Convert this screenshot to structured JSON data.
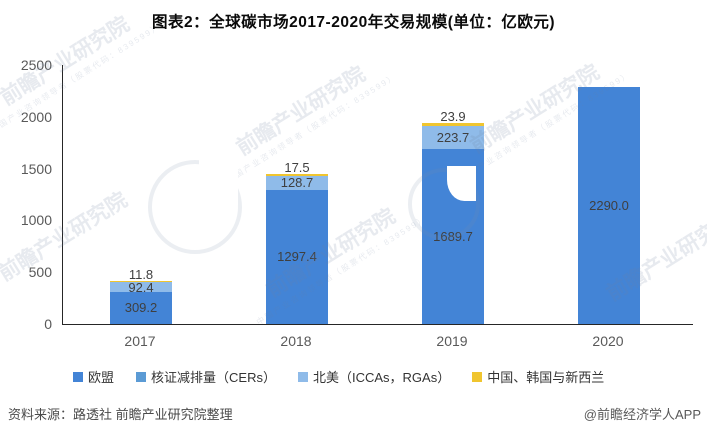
{
  "title": "图表2：全球碳市场2017-2020年交易规模(单位：亿欧元)",
  "chart_data": {
    "type": "bar",
    "stacked": true,
    "title": "图表2：全球碳市场2017-2020年交易规模(单位：亿欧元)",
    "unit": "亿欧元",
    "categories": [
      "2017",
      "2018",
      "2019",
      "2020"
    ],
    "series": [
      {
        "name": "欧盟",
        "color": "#4384D6",
        "values": [
          309.2,
          1297.4,
          1689.7,
          2290.0
        ],
        "label_position": "inside"
      },
      {
        "name": "核证减排量（CERs）",
        "color": "#5B9BD5",
        "values": [
          null,
          null,
          null,
          null
        ],
        "label_position": "none"
      },
      {
        "name": "北美（ICCAs，RGAs）",
        "color": "#8FBBE9",
        "values": [
          92.4,
          128.7,
          223.7,
          null
        ],
        "label_position": "inside"
      },
      {
        "name": "中国、韩国与新西兰",
        "color": "#F0C52F",
        "values": [
          11.8,
          17.5,
          23.9,
          null
        ],
        "label_position": "outside-top"
      }
    ],
    "ylim": [
      0,
      2500
    ],
    "yticks": [
      0,
      500,
      1000,
      1500,
      2000,
      2500
    ],
    "grid": false,
    "legend_position": "bottom"
  },
  "axis": {
    "tick_color": "#595959",
    "line_color": "#262626"
  },
  "footer": {
    "source": "资料来源：路透社 前瞻产业研究院整理",
    "credit": "@前瞻经济学人APP"
  },
  "watermark": {
    "text": "前瞻产业研究院",
    "sub": "中国产业咨询领导者（股票代码：839599）"
  }
}
